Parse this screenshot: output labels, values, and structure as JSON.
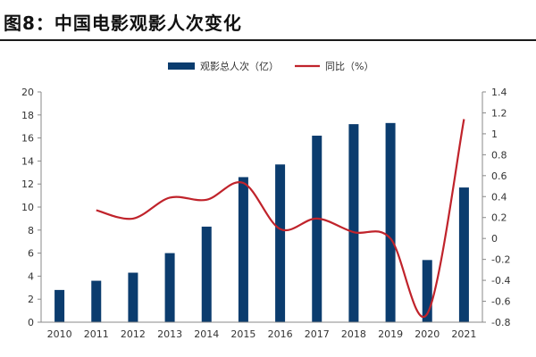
{
  "figure_title": "图8：中国电影观影人次变化",
  "chart_data": {
    "type": "bar+line",
    "title": "",
    "categories": [
      "2010",
      "2011",
      "2012",
      "2013",
      "2014",
      "2015",
      "2016",
      "2017",
      "2018",
      "2019",
      "2020",
      "2021"
    ],
    "series": [
      {
        "name": "观影总人次（亿）",
        "type": "bar",
        "axis": "left",
        "color": "#0b3c6e",
        "values": [
          2.8,
          3.6,
          4.3,
          6.0,
          8.3,
          12.6,
          13.7,
          16.2,
          17.2,
          17.3,
          5.4,
          11.7
        ]
      },
      {
        "name": "同比（%）",
        "type": "line",
        "axis": "right",
        "color": "#c0232b",
        "values": [
          null,
          0.27,
          0.19,
          0.39,
          0.37,
          0.53,
          0.09,
          0.19,
          0.06,
          0.0,
          -0.72,
          1.14
        ]
      }
    ],
    "y_left": {
      "min": 0,
      "max": 20,
      "ticks": [
        "0",
        "2",
        "4",
        "6",
        "8",
        "10",
        "12",
        "14",
        "16",
        "18",
        "20"
      ]
    },
    "y_right": {
      "min": -0.8,
      "max": 1.4,
      "ticks": [
        "-0.8",
        "-0.6",
        "-0.4",
        "-0.2",
        "0",
        "0.2",
        "0.4",
        "0.6",
        "0.8",
        "1",
        "1.2",
        "1.4"
      ]
    },
    "legend": {
      "position": "top-center"
    },
    "grid": false
  }
}
